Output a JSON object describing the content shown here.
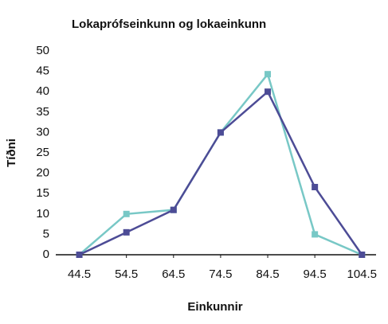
{
  "chart_data": {
    "type": "line",
    "title": "Lokaprófseinkunn og lokaeinkunn",
    "x_label": "Einkunnir",
    "y_label": "Tíðni",
    "x": [
      44.5,
      54.5,
      64.5,
      74.5,
      84.5,
      94.5,
      104.5
    ],
    "series": [
      {
        "color": "#78c8c6",
        "values": [
          0,
          10,
          11,
          30,
          44.3,
          5,
          0
        ]
      },
      {
        "color": "#4d4c96",
        "values": [
          0,
          5.5,
          11,
          30,
          40,
          16.6,
          0
        ]
      }
    ],
    "xlim": [
      39.5,
      107.5
    ],
    "ylim": [
      0,
      50
    ],
    "xticks": [
      44.5,
      54.5,
      64.5,
      74.5,
      84.5,
      94.5,
      104.5
    ],
    "yticks": [
      0,
      5,
      10,
      15,
      20,
      25,
      30,
      35,
      40,
      45,
      50
    ],
    "grid": false
  }
}
